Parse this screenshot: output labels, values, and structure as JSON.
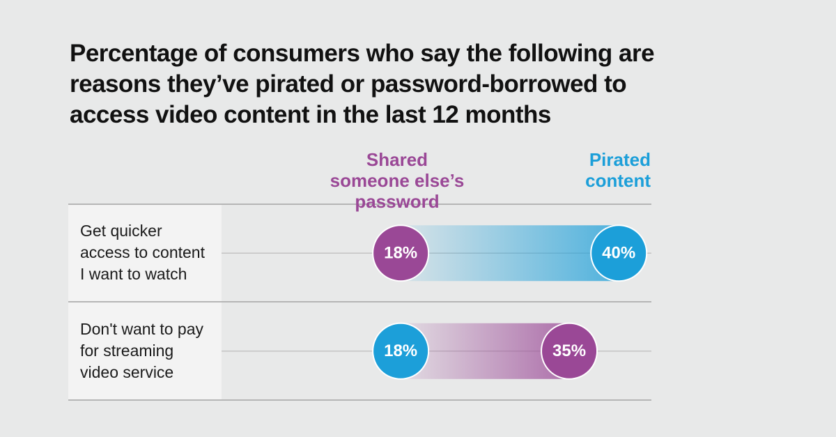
{
  "chart_data": {
    "type": "dumbbell",
    "title": "Percentage of consumers who say the following are reasons they’ve pirated or password-borrowed to access video content in the last 12 months",
    "categories": [
      "Get quicker access to content I want to watch",
      "Don't want to pay for streaming video service"
    ],
    "series": [
      {
        "name": "Shared someone else’s password",
        "color": "#9a4896",
        "values": [
          18,
          35
        ],
        "value_labels": [
          "18%",
          "35%"
        ]
      },
      {
        "name": "Pirated content",
        "color": "#1c9fd9",
        "values": [
          40,
          18
        ],
        "value_labels": [
          "40%",
          "18%"
        ]
      }
    ]
  }
}
